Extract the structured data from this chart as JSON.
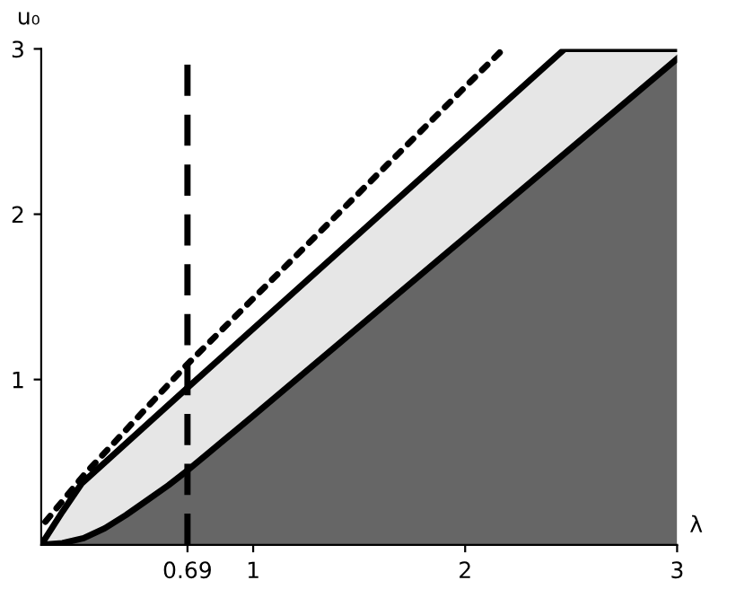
{
  "chart_data": {
    "type": "area",
    "xlabel": "λ",
    "ylabel": "u₀",
    "xlim": [
      0,
      3
    ],
    "ylim": [
      0,
      3
    ],
    "xticks": [
      {
        "value": 0.69,
        "label": "0.69"
      },
      1,
      2,
      3
    ],
    "yticks": [
      1,
      2,
      3
    ],
    "grid": false,
    "series": [
      {
        "color": "#e6e6e6",
        "x": [
          0,
          0.1,
          0.19,
          0.69,
          2.47,
          3
        ],
        "values": [
          0,
          0.2,
          0.37,
          0.95,
          3,
          3
        ]
      },
      {
        "color": "#666666",
        "x": [
          0,
          0.1,
          0.2,
          0.3,
          0.4,
          0.5,
          0.6,
          0.69,
          1,
          2,
          3
        ],
        "values": [
          0,
          0.01,
          0.04,
          0.1,
          0.18,
          0.27,
          0.36,
          0.45,
          0.78,
          1.86,
          2.94
        ]
      },
      {
        "type": "line",
        "color": "#000000",
        "line_style": "dotted",
        "x": [
          0.02,
          0.2,
          0.68,
          2.18
        ],
        "values": [
          0.14,
          0.42,
          1.08,
          3
        ]
      }
    ],
    "ref_lines": [
      {
        "axis": "x",
        "value": 0.69,
        "color": "#000000",
        "line_style": "dashed"
      }
    ]
  }
}
